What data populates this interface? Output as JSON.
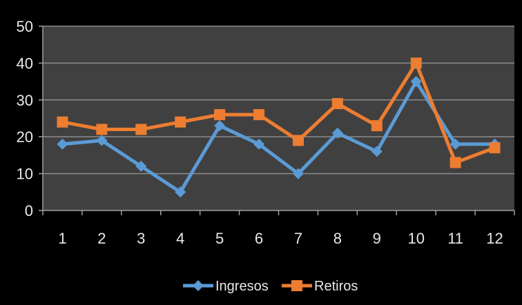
{
  "chart_data": {
    "type": "line",
    "categories": [
      "1",
      "2",
      "3",
      "4",
      "5",
      "6",
      "7",
      "8",
      "9",
      "10",
      "11",
      "12"
    ],
    "ylim": [
      0,
      50
    ],
    "yticks": [
      0,
      10,
      20,
      30,
      40,
      50
    ],
    "grid": true,
    "legend_position": "bottom",
    "series": [
      {
        "name": "Ingresos",
        "values": [
          18,
          19,
          12,
          5,
          23,
          18,
          10,
          21,
          16,
          35,
          18,
          18
        ],
        "color": "#5b9bd5",
        "marker": "diamond"
      },
      {
        "name": "Retiros",
        "values": [
          24,
          22,
          22,
          24,
          26,
          26,
          19,
          29,
          23,
          40,
          13,
          17
        ],
        "color": "#ed7d31",
        "marker": "square"
      }
    ],
    "plot_background": "#404040",
    "background": "#000000",
    "gridline_color": "#8c8c8c"
  }
}
